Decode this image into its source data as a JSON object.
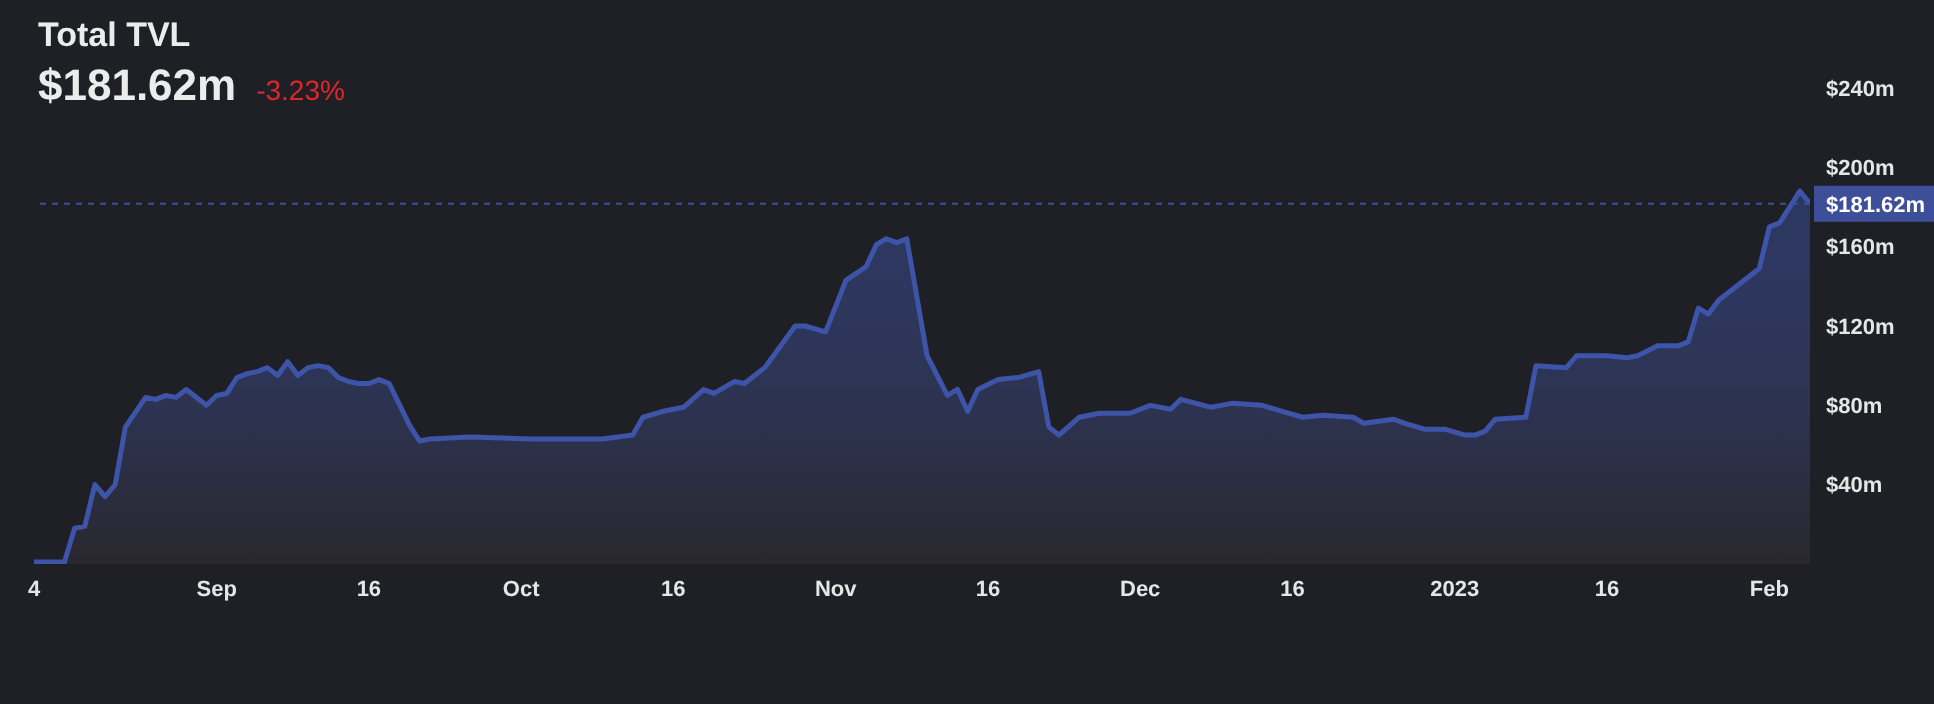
{
  "chart_data": {
    "type": "area",
    "title": "Total TVL",
    "subtitle": "$181.62m",
    "annotations": [
      "-3.23%"
    ],
    "x": [
      "2022-08-14",
      "2022-08-17",
      "2022-08-18",
      "2022-08-19",
      "2022-08-20",
      "2022-08-21",
      "2022-08-22",
      "2022-08-23",
      "2022-08-25",
      "2022-08-26",
      "2022-08-27",
      "2022-08-28",
      "2022-08-29",
      "2022-08-31",
      "2022-09-01",
      "2022-09-02",
      "2022-09-03",
      "2022-09-04",
      "2022-09-05",
      "2022-09-06",
      "2022-09-07",
      "2022-09-08",
      "2022-09-09",
      "2022-09-10",
      "2022-09-11",
      "2022-09-12",
      "2022-09-13",
      "2022-09-14",
      "2022-09-15",
      "2022-09-16",
      "2022-09-17",
      "2022-09-18",
      "2022-09-20",
      "2022-09-21",
      "2022-09-22",
      "2022-09-26",
      "2022-10-02",
      "2022-10-09",
      "2022-10-12",
      "2022-10-13",
      "2022-10-15",
      "2022-10-17",
      "2022-10-19",
      "2022-10-20",
      "2022-10-22",
      "2022-10-23",
      "2022-10-25",
      "2022-10-28",
      "2022-10-29",
      "2022-10-31",
      "2022-11-02",
      "2022-11-04",
      "2022-11-05",
      "2022-11-06",
      "2022-11-07",
      "2022-11-08",
      "2022-11-10",
      "2022-11-12",
      "2022-11-13",
      "2022-11-14",
      "2022-11-15",
      "2022-11-17",
      "2022-11-19",
      "2022-11-21",
      "2022-11-22",
      "2022-11-23",
      "2022-11-25",
      "2022-11-27",
      "2022-11-30",
      "2022-12-02",
      "2022-12-04",
      "2022-12-05",
      "2022-12-08",
      "2022-12-10",
      "2022-12-13",
      "2022-12-15",
      "2022-12-17",
      "2022-12-19",
      "2022-12-22",
      "2022-12-23",
      "2022-12-26",
      "2022-12-27",
      "2022-12-29",
      "2022-12-31",
      "2023-01-02",
      "2023-01-03",
      "2023-01-04",
      "2023-01-05",
      "2023-01-08",
      "2023-01-09",
      "2023-01-12",
      "2023-01-13",
      "2023-01-16",
      "2023-01-18",
      "2023-01-19",
      "2023-01-21",
      "2023-01-23",
      "2023-01-24",
      "2023-01-25",
      "2023-01-26",
      "2023-01-27",
      "2023-01-31",
      "2023-02-01",
      "2023-02-02",
      "2023-02-04",
      "2023-02-05"
    ],
    "series": [
      {
        "color": "#3d54a8",
        "values": [
          1,
          1,
          18,
          19,
          40,
          34,
          40,
          69,
          84,
          83,
          85,
          84,
          88,
          80,
          85,
          86,
          94,
          96,
          97,
          99,
          95,
          102,
          95,
          99,
          100,
          99,
          94,
          92,
          91,
          91,
          93,
          91,
          70,
          62,
          63,
          64,
          63,
          63,
          65,
          74,
          77,
          79,
          88,
          86,
          92,
          91,
          99,
          120,
          120,
          117,
          143,
          150,
          161,
          164,
          162,
          164,
          105,
          85,
          88,
          77,
          88,
          93,
          94,
          97,
          69,
          65,
          74,
          76,
          76,
          80,
          78,
          83,
          79,
          81,
          80,
          77,
          74,
          75,
          74,
          71,
          73,
          71,
          68,
          68,
          65,
          65,
          67,
          73,
          74,
          100,
          99,
          105,
          105,
          104,
          105,
          110,
          110,
          112,
          129,
          126,
          133,
          149,
          170,
          172,
          188,
          181.62
        ]
      }
    ],
    "xlim": [
      "2022-08-14",
      "2023-02-05"
    ],
    "xticks": [
      {
        "value": "2022-08-14",
        "label": "4"
      },
      {
        "value": "2022-09-01",
        "label": "Sep"
      },
      {
        "value": "2022-09-16",
        "label": "16"
      },
      {
        "value": "2022-10-01",
        "label": "Oct"
      },
      {
        "value": "2022-10-16",
        "label": "16"
      },
      {
        "value": "2022-11-01",
        "label": "Nov"
      },
      {
        "value": "2022-11-16",
        "label": "16"
      },
      {
        "value": "2022-12-01",
        "label": "Dec"
      },
      {
        "value": "2022-12-16",
        "label": "16"
      },
      {
        "value": "2023-01-01",
        "label": "2023"
      },
      {
        "value": "2023-01-16",
        "label": "16"
      },
      {
        "value": "2023-02-01",
        "label": "Feb"
      }
    ],
    "ylim": [
      0,
      240
    ],
    "yticks": [
      {
        "value": 40,
        "label": "$40m"
      },
      {
        "value": 80,
        "label": "$80m"
      },
      {
        "value": 120,
        "label": "$120m"
      },
      {
        "value": 160,
        "label": "$160m"
      },
      {
        "value": 200,
        "label": "$200m"
      },
      {
        "value": 240,
        "label": "$240m"
      }
    ],
    "ref_lines": [
      {
        "axis": "y",
        "value": 181.62,
        "label": "$181.62m",
        "color": "#3e4f9a",
        "line_style": "dashed"
      }
    ],
    "grid": false,
    "legend": false
  }
}
